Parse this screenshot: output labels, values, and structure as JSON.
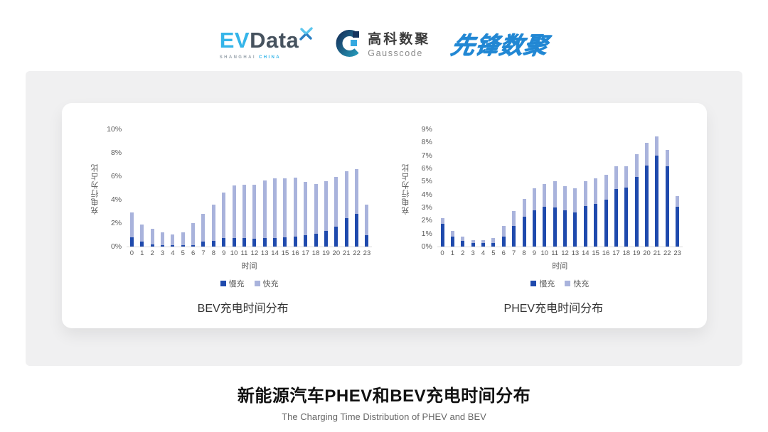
{
  "header": {
    "evdata": {
      "ev": "EV",
      "data": "Data",
      "sub_left": "SHANGHAI",
      "sub_right": "CHINA"
    },
    "gausscode": {
      "cn": "高科数聚",
      "en": "Gausscode"
    },
    "pioneer": {
      "text": "先锋数聚"
    }
  },
  "colors": {
    "slow_charge": "#1F4AAD",
    "fast_charge": "#A9B3DC",
    "axis_text": "#595959",
    "panel_bg": "#F0F0F1",
    "accent_blue": "#2287D3"
  },
  "chart_data": [
    {
      "type": "bar",
      "stacked": true,
      "title": "BEV充电时间分布",
      "xlabel": "时间",
      "ylabel": "充电行为占比",
      "ylim": [
        0,
        10
      ],
      "ytick_step": 2,
      "ytick_suffix": "%",
      "grid": false,
      "legend_position": "bottom",
      "categories": [
        "0",
        "1",
        "2",
        "3",
        "4",
        "5",
        "6",
        "7",
        "8",
        "9",
        "10",
        "11",
        "12",
        "13",
        "14",
        "15",
        "16",
        "17",
        "18",
        "19",
        "20",
        "21",
        "22",
        "23"
      ],
      "series": [
        {
          "name": "慢充",
          "color": "#1F4AAD",
          "values": [
            0.8,
            0.4,
            0.2,
            0.1,
            0.1,
            0.1,
            0.15,
            0.4,
            0.5,
            0.7,
            0.7,
            0.7,
            0.65,
            0.7,
            0.7,
            0.8,
            0.85,
            1.0,
            1.1,
            1.35,
            1.7,
            2.4,
            2.8,
            1.0
          ]
        },
        {
          "name": "快充",
          "color": "#A9B3DC",
          "values": [
            2.1,
            1.5,
            1.3,
            1.1,
            0.95,
            1.1,
            1.85,
            2.4,
            3.1,
            3.9,
            4.5,
            4.6,
            4.65,
            4.95,
            5.1,
            5.0,
            5.05,
            4.5,
            4.25,
            4.25,
            4.25,
            4.0,
            3.8,
            2.6
          ]
        }
      ]
    },
    {
      "type": "bar",
      "stacked": true,
      "title": "PHEV充电时间分布",
      "xlabel": "时间",
      "ylabel": "充电行为占比",
      "ylim": [
        0,
        9
      ],
      "ytick_step": 1,
      "ytick_suffix": "%",
      "grid": false,
      "legend_position": "bottom",
      "categories": [
        "0",
        "1",
        "2",
        "3",
        "4",
        "5",
        "6",
        "7",
        "8",
        "9",
        "10",
        "11",
        "12",
        "13",
        "14",
        "15",
        "16",
        "17",
        "18",
        "19",
        "20",
        "21",
        "22",
        "23"
      ],
      "series": [
        {
          "name": "慢充",
          "color": "#1F4AAD",
          "values": [
            1.75,
            0.75,
            0.45,
            0.25,
            0.25,
            0.3,
            0.75,
            1.6,
            2.3,
            2.8,
            3.05,
            3.0,
            2.8,
            2.6,
            3.1,
            3.3,
            3.6,
            4.4,
            4.55,
            5.35,
            6.2,
            7.0,
            6.15,
            3.05
          ]
        },
        {
          "name": "快充",
          "color": "#A9B3DC",
          "values": [
            0.45,
            0.45,
            0.3,
            0.25,
            0.25,
            0.35,
            0.85,
            1.15,
            1.35,
            1.7,
            1.75,
            2.0,
            1.85,
            1.9,
            1.9,
            1.95,
            1.9,
            1.75,
            1.6,
            1.75,
            1.75,
            1.45,
            1.25,
            0.8
          ]
        }
      ]
    }
  ],
  "footer": {
    "title": "新能源汽车PHEV和BEV充电时间分布",
    "subtitle": "The Charging Time Distribution of PHEV and BEV"
  }
}
